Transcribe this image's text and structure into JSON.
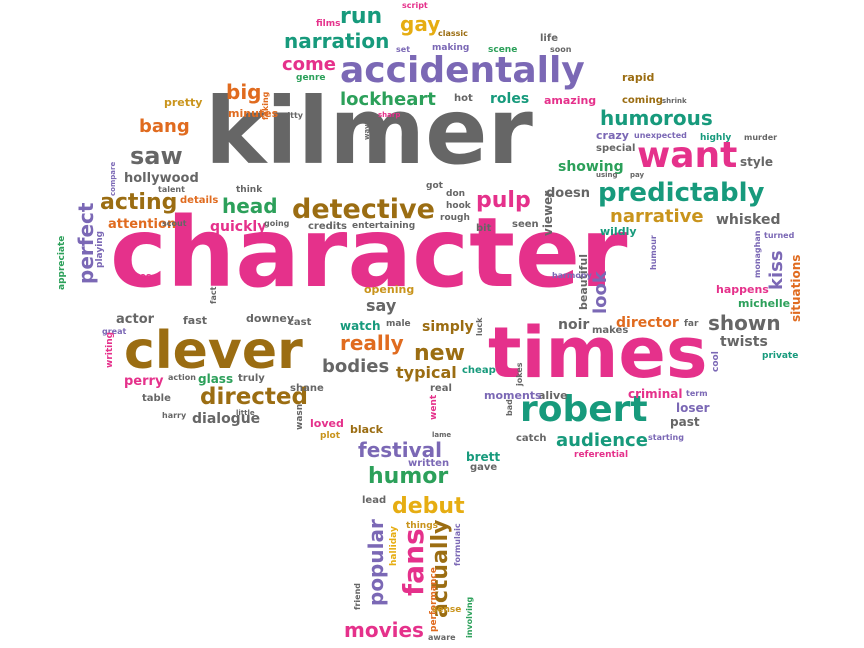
{
  "palette": {
    "pink": "#e5318b",
    "grey": "#666666",
    "purple": "#7b68b5",
    "green": "#2ca05a",
    "teal": "#179a7c",
    "orange": "#e06b1f",
    "gold": "#c9941c",
    "brown": "#9b6d12",
    "yellow": "#e6ad12"
  },
  "words": [
    {
      "text": "character",
      "color": "pink"
    },
    {
      "text": "kilmer",
      "color": "grey"
    },
    {
      "text": "times",
      "color": "pink"
    },
    {
      "text": "clever",
      "color": "brown"
    },
    {
      "text": "accidentally",
      "color": "purple"
    },
    {
      "text": "robert",
      "color": "teal"
    },
    {
      "text": "want",
      "color": "pink"
    },
    {
      "text": "predictably",
      "color": "teal"
    },
    {
      "text": "detective",
      "color": "brown"
    },
    {
      "text": "humorous",
      "color": "teal"
    },
    {
      "text": "narration",
      "color": "teal"
    },
    {
      "text": "lockheart",
      "color": "green"
    },
    {
      "text": "directed",
      "color": "brown"
    },
    {
      "text": "festival",
      "color": "purple"
    },
    {
      "text": "humor",
      "color": "green"
    },
    {
      "text": "debut",
      "color": "yellow"
    },
    {
      "text": "fans",
      "color": "pink"
    },
    {
      "text": "popular",
      "color": "purple"
    },
    {
      "text": "actually",
      "color": "brown"
    },
    {
      "text": "movies",
      "color": "pink"
    },
    {
      "text": "shown",
      "color": "grey"
    },
    {
      "text": "audience",
      "color": "teal"
    },
    {
      "text": "really",
      "color": "orange"
    },
    {
      "text": "new",
      "color": "brown"
    },
    {
      "text": "bodies",
      "color": "grey"
    },
    {
      "text": "typical",
      "color": "brown"
    },
    {
      "text": "perfect",
      "color": "purple"
    },
    {
      "text": "acting",
      "color": "brown"
    },
    {
      "text": "head",
      "color": "green"
    },
    {
      "text": "saw",
      "color": "grey"
    },
    {
      "text": "bang",
      "color": "orange"
    },
    {
      "text": "big",
      "color": "orange"
    },
    {
      "text": "run",
      "color": "teal"
    },
    {
      "text": "gay",
      "color": "yellow"
    },
    {
      "text": "come",
      "color": "pink"
    },
    {
      "text": "pulp",
      "color": "pink"
    },
    {
      "text": "narrative",
      "color": "gold"
    },
    {
      "text": "whisked",
      "color": "grey"
    },
    {
      "text": "kiss",
      "color": "purple"
    },
    {
      "text": "look",
      "color": "purple"
    },
    {
      "text": "director",
      "color": "orange"
    },
    {
      "text": "twists",
      "color": "grey"
    },
    {
      "text": "showing",
      "color": "green"
    },
    {
      "text": "say",
      "color": "grey"
    },
    {
      "text": "simply",
      "color": "brown"
    },
    {
      "text": "noir",
      "color": "grey"
    },
    {
      "text": "quickly",
      "color": "pink"
    },
    {
      "text": "dialogue",
      "color": "grey"
    },
    {
      "text": "hollywood",
      "color": "grey"
    },
    {
      "text": "actor",
      "color": "grey"
    },
    {
      "text": "perry",
      "color": "pink"
    },
    {
      "text": "glass",
      "color": "green"
    },
    {
      "text": "roles",
      "color": "teal"
    },
    {
      "text": "amazing",
      "color": "pink"
    },
    {
      "text": "pretty",
      "color": "gold"
    },
    {
      "text": "minutes",
      "color": "orange"
    },
    {
      "text": "attention",
      "color": "orange"
    },
    {
      "text": "watch",
      "color": "teal"
    },
    {
      "text": "opening",
      "color": "gold"
    },
    {
      "text": "criminal",
      "color": "pink"
    },
    {
      "text": "alive",
      "color": "grey"
    },
    {
      "text": "moments",
      "color": "purple"
    },
    {
      "text": "loser",
      "color": "purple"
    },
    {
      "text": "past",
      "color": "grey"
    },
    {
      "text": "cool",
      "color": "purple"
    },
    {
      "text": "happens",
      "color": "pink"
    },
    {
      "text": "michelle",
      "color": "green"
    },
    {
      "text": "situations",
      "color": "orange"
    },
    {
      "text": "crazy",
      "color": "purple"
    },
    {
      "text": "special",
      "color": "grey"
    },
    {
      "text": "style",
      "color": "grey"
    },
    {
      "text": "coming",
      "color": "brown"
    },
    {
      "text": "rapid",
      "color": "brown"
    },
    {
      "text": "doesn",
      "color": "grey"
    },
    {
      "text": "wildly",
      "color": "teal"
    },
    {
      "text": "beautiful",
      "color": "grey"
    },
    {
      "text": "downey",
      "color": "grey"
    },
    {
      "text": "fast",
      "color": "grey"
    },
    {
      "text": "cast",
      "color": "grey"
    },
    {
      "text": "male",
      "color": "grey"
    },
    {
      "text": "loved",
      "color": "pink"
    },
    {
      "text": "black",
      "color": "brown"
    },
    {
      "text": "shane",
      "color": "grey"
    },
    {
      "text": "truly",
      "color": "grey"
    },
    {
      "text": "table",
      "color": "grey"
    },
    {
      "text": "brett",
      "color": "teal"
    },
    {
      "text": "gave",
      "color": "grey"
    },
    {
      "text": "written",
      "color": "purple"
    },
    {
      "text": "lead",
      "color": "grey"
    },
    {
      "text": "catch",
      "color": "grey"
    },
    {
      "text": "referential",
      "color": "pink"
    },
    {
      "text": "cheap",
      "color": "teal"
    },
    {
      "text": "real",
      "color": "grey"
    },
    {
      "text": "credits",
      "color": "grey"
    },
    {
      "text": "entertaining",
      "color": "grey"
    },
    {
      "text": "rough",
      "color": "grey"
    },
    {
      "text": "hook",
      "color": "grey"
    },
    {
      "text": "don",
      "color": "grey"
    },
    {
      "text": "got",
      "color": "grey"
    },
    {
      "text": "bit",
      "color": "grey"
    },
    {
      "text": "seen",
      "color": "grey"
    },
    {
      "text": "witty",
      "color": "grey"
    },
    {
      "text": "viewer",
      "color": "grey"
    },
    {
      "text": "details",
      "color": "orange"
    },
    {
      "text": "think",
      "color": "grey"
    },
    {
      "text": "going",
      "color": "grey"
    },
    {
      "text": "scout",
      "color": "grey"
    },
    {
      "text": "talent",
      "color": "grey"
    },
    {
      "text": "genre",
      "color": "green"
    },
    {
      "text": "hot",
      "color": "grey"
    },
    {
      "text": "films",
      "color": "pink"
    },
    {
      "text": "set",
      "color": "purple"
    },
    {
      "text": "making",
      "color": "purple"
    },
    {
      "text": "classic",
      "color": "brown"
    },
    {
      "text": "script",
      "color": "pink"
    },
    {
      "text": "scene",
      "color": "green"
    },
    {
      "text": "life",
      "color": "grey"
    },
    {
      "text": "soon",
      "color": "grey"
    },
    {
      "text": "way",
      "color": "grey"
    },
    {
      "text": "shrink",
      "color": "grey"
    },
    {
      "text": "unexpected",
      "color": "purple"
    },
    {
      "text": "highly",
      "color": "teal"
    },
    {
      "text": "murder",
      "color": "grey"
    },
    {
      "text": "pay",
      "color": "grey"
    },
    {
      "text": "using",
      "color": "grey"
    },
    {
      "text": "humour",
      "color": "purple"
    },
    {
      "text": "monaghan",
      "color": "purple"
    },
    {
      "text": "turned",
      "color": "purple"
    },
    {
      "text": "sharp",
      "color": "pink"
    },
    {
      "text": "harmony",
      "color": "purple"
    },
    {
      "text": "luck",
      "color": "grey"
    },
    {
      "text": "jokes",
      "color": "grey"
    },
    {
      "text": "private",
      "color": "teal"
    },
    {
      "text": "term",
      "color": "purple"
    },
    {
      "text": "starting",
      "color": "purple"
    },
    {
      "text": "makes",
      "color": "grey"
    },
    {
      "text": "far",
      "color": "grey"
    },
    {
      "text": "bad",
      "color": "grey"
    },
    {
      "text": "went",
      "color": "pink"
    },
    {
      "text": "lame",
      "color": "grey"
    },
    {
      "text": "wasn",
      "color": "grey"
    },
    {
      "text": "plot",
      "color": "gold"
    },
    {
      "text": "little",
      "color": "grey"
    },
    {
      "text": "harry",
      "color": "grey"
    },
    {
      "text": "action",
      "color": "grey"
    },
    {
      "text": "faking",
      "color": "orange"
    },
    {
      "text": "great",
      "color": "purple"
    },
    {
      "text": "fact",
      "color": "grey"
    },
    {
      "text": "yes",
      "color": "pink"
    },
    {
      "text": "writing",
      "color": "pink"
    },
    {
      "text": "appreciate",
      "color": "green"
    },
    {
      "text": "playing",
      "color": "purple"
    },
    {
      "text": "compare",
      "color": "purple"
    },
    {
      "text": "halliday",
      "color": "yellow"
    },
    {
      "text": "things",
      "color": "gold"
    },
    {
      "text": "formulaic",
      "color": "purple"
    },
    {
      "text": "performance",
      "color": "orange"
    },
    {
      "text": "sense",
      "color": "gold"
    },
    {
      "text": "aware",
      "color": "grey"
    },
    {
      "text": "involving",
      "color": "green"
    },
    {
      "text": "friend",
      "color": "grey"
    }
  ]
}
